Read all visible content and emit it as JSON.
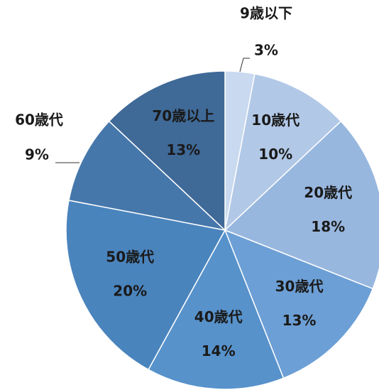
{
  "chart_data": {
    "type": "pie",
    "categories": [
      "9歳以下",
      "10歳代",
      "20歳代",
      "30歳代",
      "40歳代",
      "50歳代",
      "60歳代",
      "70歳以上"
    ],
    "values": [
      3,
      10,
      18,
      13,
      14,
      20,
      9,
      13
    ],
    "value_labels": [
      "3%",
      "10%",
      "18%",
      "13%",
      "14%",
      "20%",
      "9%",
      "13%"
    ],
    "colors": [
      "#c9d9ef",
      "#b2c8e7",
      "#98b7df",
      "#6c9fd5",
      "#5792cb",
      "#4a84bd",
      "#4677ab",
      "#3f6997"
    ]
  }
}
